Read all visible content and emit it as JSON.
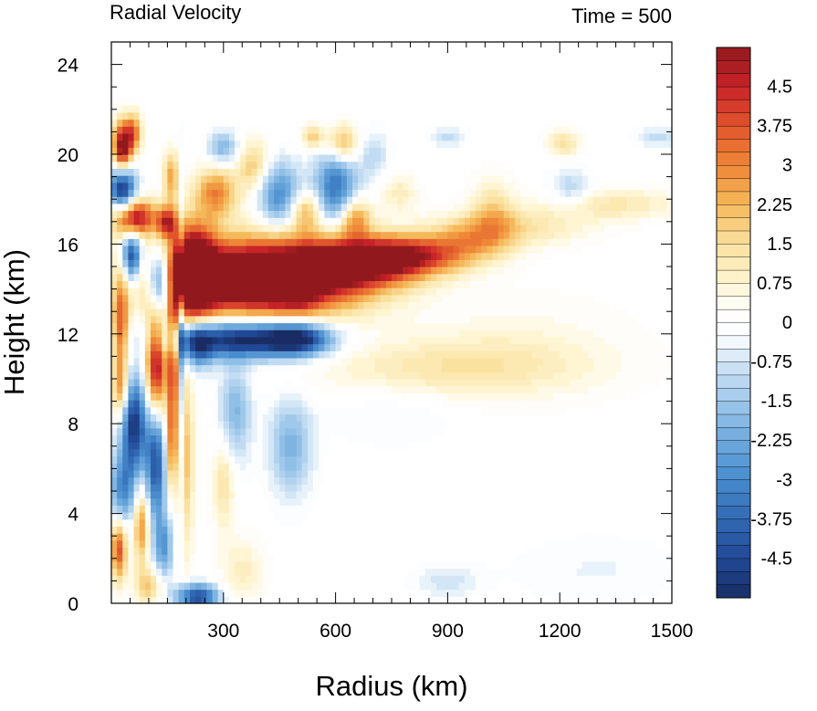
{
  "chart_data": {
    "type": "heatmap",
    "title": "Radial Velocity",
    "annotation": "Time = 500",
    "xlabel": "Radius (km)",
    "ylabel": "Height (km)",
    "xlim": [
      0,
      1500
    ],
    "ylim": [
      0,
      25
    ],
    "xticks": [
      300,
      600,
      900,
      1200,
      1500
    ],
    "yticks": [
      0,
      4,
      8,
      12,
      16,
      20,
      24
    ],
    "colorbar": {
      "min": -5.25,
      "max": 5.25,
      "step": 0.25,
      "labels": [
        "4.5",
        "3.75",
        "3",
        "2.25",
        "1.5",
        "0.75",
        "0",
        "-0.75",
        "-1.5",
        "-2.25",
        "-3",
        "-3.75",
        "-4.5"
      ],
      "label_values": [
        4.5,
        3.75,
        3,
        2.25,
        1.5,
        0.75,
        0,
        -0.75,
        -1.5,
        -2.25,
        -3,
        -3.75,
        -4.5
      ]
    },
    "features": [
      {
        "r": 400,
        "z": 14.5,
        "sr": 180,
        "sz": 1.2,
        "v": 7.5
      },
      {
        "r": 220,
        "z": 14.8,
        "sr": 40,
        "sz": 1.4,
        "v": 6.5
      },
      {
        "r": 650,
        "z": 15.2,
        "sr": 120,
        "sz": 0.8,
        "v": 4.5
      },
      {
        "r": 800,
        "z": 15.5,
        "sr": 100,
        "sz": 0.6,
        "v": 3.5
      },
      {
        "r": 960,
        "z": 16.2,
        "sr": 80,
        "sz": 0.7,
        "v": 2.0
      },
      {
        "r": 1100,
        "z": 16.8,
        "sr": 120,
        "sz": 0.6,
        "v": 1.3
      },
      {
        "r": 1350,
        "z": 17.8,
        "sr": 120,
        "sz": 0.5,
        "v": 1.2
      },
      {
        "r": 350,
        "z": 11.8,
        "sr": 130,
        "sz": 0.6,
        "v": -5.5
      },
      {
        "r": 500,
        "z": 11.8,
        "sr": 60,
        "sz": 0.5,
        "v": -4.0
      },
      {
        "r": 230,
        "z": 11.5,
        "sr": 30,
        "sz": 0.7,
        "v": -3.0
      },
      {
        "r": 900,
        "z": 10.5,
        "sr": 250,
        "sz": 0.9,
        "v": 1.2
      },
      {
        "r": 1100,
        "z": 11.5,
        "sr": 200,
        "sz": 1.5,
        "v": 0.5
      },
      {
        "r": 55,
        "z": 15.5,
        "sr": 18,
        "sz": 0.8,
        "v": -5.0
      },
      {
        "r": 130,
        "z": 14.3,
        "sr": 22,
        "sz": 1.0,
        "v": -5.0
      },
      {
        "r": 25,
        "z": 12.5,
        "sr": 15,
        "sz": 1.5,
        "v": 3.5
      },
      {
        "r": 120,
        "z": 10.5,
        "sr": 20,
        "sz": 1.8,
        "v": 5.5
      },
      {
        "r": 165,
        "z": 11.0,
        "sr": 10,
        "sz": 2.0,
        "v": 4.0
      },
      {
        "r": 185,
        "z": 11.0,
        "sr": 4,
        "sz": 4.5,
        "v": -2.5
      },
      {
        "r": 60,
        "z": 8.0,
        "sr": 25,
        "sz": 1.5,
        "v": -5.0
      },
      {
        "r": 120,
        "z": 6.5,
        "sr": 20,
        "sz": 2.0,
        "v": -4.5
      },
      {
        "r": 160,
        "z": 7.0,
        "sr": 12,
        "sz": 1.5,
        "v": 3.0
      },
      {
        "r": 25,
        "z": 9.5,
        "sr": 15,
        "sz": 1.0,
        "v": 3.0
      },
      {
        "r": 200,
        "z": 6.5,
        "sr": 15,
        "sz": 3.0,
        "v": 2.0
      },
      {
        "r": 330,
        "z": 8.5,
        "sr": 30,
        "sz": 1.5,
        "v": -2.0
      },
      {
        "r": 480,
        "z": 7.0,
        "sr": 40,
        "sz": 1.5,
        "v": -2.0
      },
      {
        "r": 300,
        "z": 5.5,
        "sr": 20,
        "sz": 1.5,
        "v": 1.5
      },
      {
        "r": 30,
        "z": 5.0,
        "sr": 25,
        "sz": 1.2,
        "v": -3.0
      },
      {
        "r": 20,
        "z": 2.5,
        "sr": 15,
        "sz": 1.0,
        "v": 4.0
      },
      {
        "r": 80,
        "z": 3.5,
        "sr": 15,
        "sz": 1.2,
        "v": 3.0
      },
      {
        "r": 140,
        "z": 2.5,
        "sr": 18,
        "sz": 1.0,
        "v": -2.5
      },
      {
        "r": 100,
        "z": 0.8,
        "sr": 25,
        "sz": 0.6,
        "v": 2.0
      },
      {
        "r": 230,
        "z": 0.3,
        "sr": 40,
        "sz": 0.4,
        "v": -4.5
      },
      {
        "r": 350,
        "z": 1.5,
        "sr": 40,
        "sz": 1.0,
        "v": 1.0
      },
      {
        "r": 30,
        "z": 20.3,
        "sr": 18,
        "sz": 0.8,
        "v": 6.0
      },
      {
        "r": 30,
        "z": 18.5,
        "sr": 25,
        "sz": 0.8,
        "v": -5.5
      },
      {
        "r": 60,
        "z": 17.2,
        "sr": 40,
        "sz": 0.6,
        "v": 5.5
      },
      {
        "r": 60,
        "z": 21.0,
        "sr": 15,
        "sz": 0.6,
        "v": 3.0
      },
      {
        "r": 150,
        "z": 17.0,
        "sr": 20,
        "sz": 0.5,
        "v": 4.0
      },
      {
        "r": 160,
        "z": 19.0,
        "sr": 15,
        "sz": 0.8,
        "v": 2.5
      },
      {
        "r": 280,
        "z": 18.3,
        "sr": 40,
        "sz": 0.8,
        "v": 3.0
      },
      {
        "r": 300,
        "z": 20.3,
        "sr": 30,
        "sz": 0.5,
        "v": -2.0
      },
      {
        "r": 380,
        "z": 19.5,
        "sr": 30,
        "sz": 0.8,
        "v": 2.0
      },
      {
        "r": 450,
        "z": 18.2,
        "sr": 40,
        "sz": 1.0,
        "v": -3.0
      },
      {
        "r": 520,
        "z": 17.5,
        "sr": 30,
        "sz": 0.6,
        "v": 2.5
      },
      {
        "r": 600,
        "z": 18.5,
        "sr": 40,
        "sz": 1.2,
        "v": -3.5
      },
      {
        "r": 650,
        "z": 17.2,
        "sr": 30,
        "sz": 0.6,
        "v": 3.0
      },
      {
        "r": 540,
        "z": 20.8,
        "sr": 20,
        "sz": 0.4,
        "v": 2.0
      },
      {
        "r": 620,
        "z": 20.5,
        "sr": 30,
        "sz": 0.6,
        "v": 2.5
      },
      {
        "r": 700,
        "z": 20.0,
        "sr": 30,
        "sz": 0.8,
        "v": -1.0
      },
      {
        "r": 770,
        "z": 18.3,
        "sr": 35,
        "sz": 0.6,
        "v": 1.0
      },
      {
        "r": 900,
        "z": 20.8,
        "sr": 30,
        "sz": 0.3,
        "v": -1.0
      },
      {
        "r": 1020,
        "z": 17.5,
        "sr": 40,
        "sz": 1.0,
        "v": 1.5
      },
      {
        "r": 1230,
        "z": 18.5,
        "sr": 40,
        "sz": 0.6,
        "v": -1.2
      },
      {
        "r": 1210,
        "z": 20.5,
        "sr": 30,
        "sz": 0.4,
        "v": 1.5
      },
      {
        "r": 1460,
        "z": 20.8,
        "sr": 40,
        "sz": 0.3,
        "v": -1.0
      },
      {
        "r": 500,
        "z": 13.5,
        "sr": 40,
        "sz": 0.5,
        "v": 1.0
      },
      {
        "r": 750,
        "z": 8.5,
        "sr": 120,
        "sz": 1.0,
        "v": -0.4
      },
      {
        "r": 1300,
        "z": 1.5,
        "sr": 150,
        "sz": 1.0,
        "v": -0.4
      },
      {
        "r": 900,
        "z": 1.0,
        "sr": 60,
        "sz": 0.5,
        "v": -0.8
      }
    ]
  }
}
